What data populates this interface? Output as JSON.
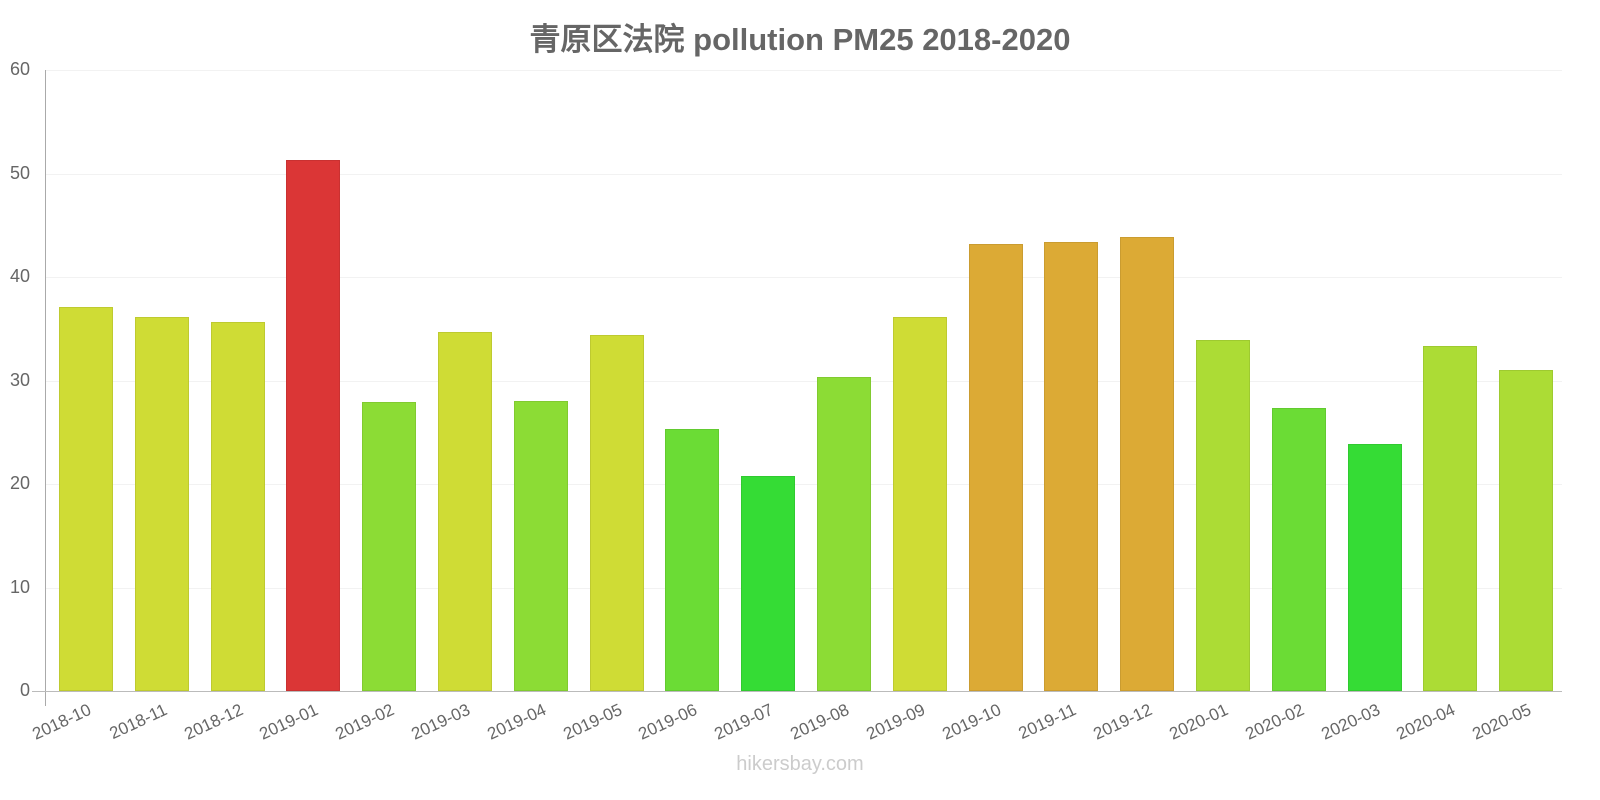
{
  "chart": {
    "title": "青原区法院 pollution PM25 2018-2020",
    "footer": "hikersbay.com",
    "y_ticks": [
      "0",
      "10",
      "20",
      "30",
      "40",
      "50",
      "60"
    ]
  },
  "chart_data": {
    "type": "bar",
    "title": "青原区法院 pollution PM25 2018-2020",
    "xlabel": "",
    "ylabel": "",
    "ylim": [
      0,
      60
    ],
    "grid": true,
    "legend": null,
    "categories": [
      "2018-10",
      "2018-11",
      "2018-12",
      "2019-01",
      "2019-02",
      "2019-03",
      "2019-04",
      "2019-05",
      "2019-06",
      "2019-07",
      "2019-08",
      "2019-09",
      "2019-10",
      "2019-11",
      "2019-12",
      "2020-01",
      "2020-02",
      "2020-03",
      "2020-04",
      "2020-05"
    ],
    "values": [
      37.1,
      36.1,
      35.7,
      51.3,
      27.9,
      34.7,
      28.0,
      34.4,
      25.3,
      20.8,
      30.3,
      36.1,
      43.2,
      43.4,
      43.9,
      33.9,
      27.3,
      23.9,
      33.3,
      31.0
    ],
    "colors": [
      "#cfdc35",
      "#cfdc35",
      "#cfdc35",
      "#db3636",
      "#8cdc35",
      "#cfdc35",
      "#8cdc35",
      "#cfdc35",
      "#6bdc35",
      "#35dc35",
      "#8cdc35",
      "#cfdc35",
      "#dcaa35",
      "#dcaa35",
      "#dcaa35",
      "#acdc35",
      "#6bdc35",
      "#35dc35",
      "#acdc35",
      "#acdc35"
    ]
  }
}
